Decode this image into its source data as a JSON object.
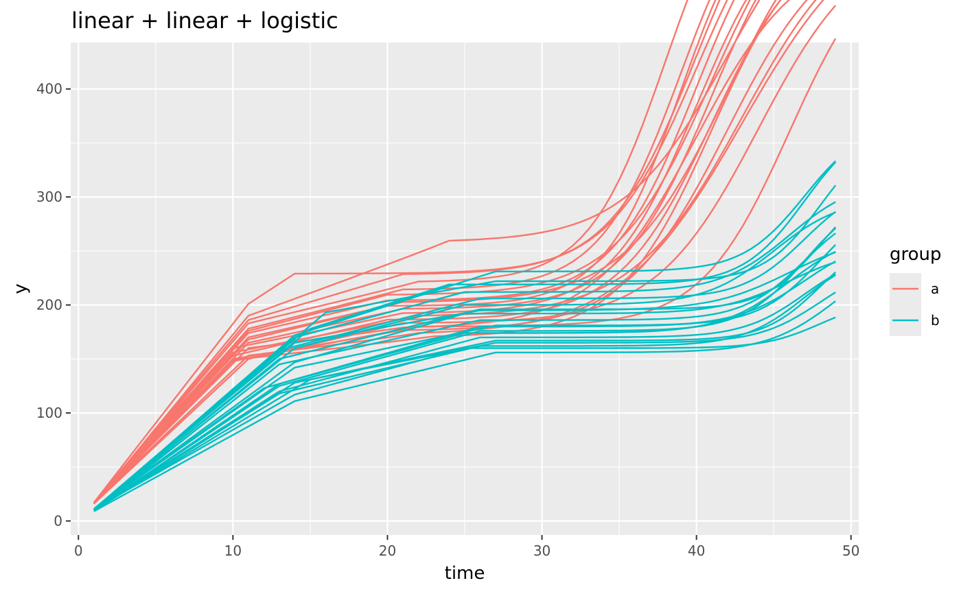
{
  "chart_data": {
    "type": "line",
    "title": "linear + linear + logistic",
    "xlabel": "time",
    "ylabel": "y",
    "xlim": [
      -0.5,
      50.5
    ],
    "ylim": [
      -13,
      443
    ],
    "x_ticks": [
      0,
      10,
      20,
      30,
      40,
      50
    ],
    "x_tick_labels": [
      "0",
      "10",
      "20",
      "30",
      "40",
      "50"
    ],
    "y_ticks": [
      0,
      100,
      200,
      300,
      400
    ],
    "y_tick_labels": [
      "0",
      "100",
      "200",
      "300",
      "400"
    ],
    "grid": true,
    "legend": {
      "title": "group",
      "position": "right",
      "entries": [
        {
          "label": "a",
          "color": "#F8766D"
        },
        {
          "label": "b",
          "color": "#00BFC4"
        }
      ]
    },
    "series_model": {
      "x_start": 1,
      "x_end": 49,
      "note_shape": "each line: linear rise from x=1 to knot1, gentle linear rise to plateau, logistic rise near the end"
    },
    "groups": [
      {
        "name": "a",
        "color": "#F8766D",
        "lines": [
          {
            "y0": 17,
            "k1": 11,
            "y1": 201,
            "k2": 14,
            "y2": 229,
            "inf": 40,
            "rate": 0.35,
            "top": 380
          },
          {
            "y0": 16,
            "k1": 11,
            "y1": 190,
            "k2": 24,
            "y2": 258,
            "inf": 42,
            "rate": 0.3,
            "top": 345
          },
          {
            "y0": 17,
            "k1": 11,
            "y1": 186,
            "k2": 21,
            "y2": 228,
            "inf": 40,
            "rate": 0.35,
            "top": 405
          },
          {
            "y0": 16,
            "k1": 11,
            "y1": 183,
            "k2": 22,
            "y2": 221,
            "inf": 38,
            "rate": 0.4,
            "top": 410
          },
          {
            "y0": 17,
            "k1": 11,
            "y1": 178,
            "k2": 21,
            "y2": 214,
            "inf": 39,
            "rate": 0.38,
            "top": 402
          },
          {
            "y0": 16,
            "k1": 11,
            "y1": 176,
            "k2": 20,
            "y2": 209,
            "inf": 41,
            "rate": 0.32,
            "top": 398
          },
          {
            "y0": 17,
            "k1": 11,
            "y1": 174,
            "k2": 20,
            "y2": 204,
            "inf": 40,
            "rate": 0.36,
            "top": 395
          },
          {
            "y0": 16,
            "k1": 11,
            "y1": 170,
            "k2": 21,
            "y2": 202,
            "inf": 42,
            "rate": 0.3,
            "top": 390
          },
          {
            "y0": 17,
            "k1": 11,
            "y1": 168,
            "k2": 20,
            "y2": 199,
            "inf": 39,
            "rate": 0.4,
            "top": 400
          },
          {
            "y0": 16,
            "k1": 11,
            "y1": 165,
            "k2": 21,
            "y2": 196,
            "inf": 41,
            "rate": 0.34,
            "top": 396
          },
          {
            "y0": 17,
            "k1": 10,
            "y1": 160,
            "k2": 21,
            "y2": 192,
            "inf": 40,
            "rate": 0.35,
            "top": 385
          },
          {
            "y0": 16,
            "k1": 10,
            "y1": 156,
            "k2": 22,
            "y2": 189,
            "inf": 43,
            "rate": 0.28,
            "top": 372
          },
          {
            "y0": 17,
            "k1": 10,
            "y1": 153,
            "k2": 20,
            "y2": 186,
            "inf": 41,
            "rate": 0.33,
            "top": 365
          },
          {
            "y0": 16,
            "k1": 11,
            "y1": 150,
            "k2": 21,
            "y2": 183,
            "inf": 44,
            "rate": 0.3,
            "top": 360
          },
          {
            "y0": 17,
            "k1": 10,
            "y1": 148,
            "k2": 22,
            "y2": 180,
            "inf": 46,
            "rate": 0.35,
            "top": 360
          },
          {
            "y0": 16,
            "k1": 10,
            "y1": 150,
            "k2": 21,
            "y2": 176,
            "inf": 42,
            "rate": 0.3,
            "top": 372
          },
          {
            "y0": 17,
            "k1": 11,
            "y1": 153,
            "k2": 22,
            "y2": 172,
            "inf": 43,
            "rate": 0.25,
            "top": 395
          },
          {
            "y0": 16,
            "k1": 10,
            "y1": 149,
            "k2": 23,
            "y2": 170,
            "inf": 41,
            "rate": 0.33,
            "top": 385
          },
          {
            "y0": 17,
            "k1": 11,
            "y1": 160,
            "k2": 21,
            "y2": 178,
            "inf": 40,
            "rate": 0.3,
            "top": 355
          }
        ]
      },
      {
        "name": "b",
        "color": "#00BFC4",
        "lines": [
          {
            "y0": 10,
            "k1": 14,
            "y1": 172,
            "k2": 27,
            "y2": 231,
            "inf": 47,
            "rate": 0.5,
            "top": 140
          },
          {
            "y0": 11,
            "k1": 15,
            "y1": 178,
            "k2": 24,
            "y2": 219,
            "inf": 47,
            "rate": 0.5,
            "top": 155
          },
          {
            "y0": 10,
            "k1": 16,
            "y1": 193,
            "k2": 27,
            "y2": 222,
            "inf": 48,
            "rate": 0.55,
            "top": 140
          },
          {
            "y0": 11,
            "k1": 14,
            "y1": 170,
            "k2": 25,
            "y2": 212,
            "inf": 46,
            "rate": 0.45,
            "top": 105
          },
          {
            "y0": 10,
            "k1": 13,
            "y1": 158,
            "k2": 26,
            "y2": 206,
            "inf": 47,
            "rate": 0.5,
            "top": 110
          },
          {
            "y0": 11,
            "k1": 14,
            "y1": 160,
            "k2": 25,
            "y2": 200,
            "inf": 45,
            "rate": 0.45,
            "top": 100
          },
          {
            "y0": 10,
            "k1": 13,
            "y1": 150,
            "k2": 26,
            "y2": 196,
            "inf": 48,
            "rate": 0.55,
            "top": 120
          },
          {
            "y0": 11,
            "k1": 14,
            "y1": 147,
            "k2": 25,
            "y2": 192,
            "inf": 46,
            "rate": 0.45,
            "top": 60
          },
          {
            "y0": 10,
            "k1": 13,
            "y1": 145,
            "k2": 26,
            "y2": 186,
            "inf": 47,
            "rate": 0.5,
            "top": 110
          },
          {
            "y0": 11,
            "k1": 14,
            "y1": 142,
            "k2": 27,
            "y2": 181,
            "inf": 48,
            "rate": 0.5,
            "top": 120
          },
          {
            "y0": 10,
            "k1": 13,
            "y1": 125,
            "k2": 26,
            "y2": 176,
            "inf": 47,
            "rate": 0.5,
            "top": 130
          },
          {
            "y0": 11,
            "k1": 12,
            "y1": 123,
            "k2": 25,
            "y2": 174,
            "inf": 46,
            "rate": 0.45,
            "top": 95
          },
          {
            "y0": 10,
            "k1": 13,
            "y1": 120,
            "k2": 26,
            "y2": 170,
            "inf": 47,
            "rate": 0.5,
            "top": 80
          },
          {
            "y0": 11,
            "k1": 14,
            "y1": 128,
            "k2": 27,
            "y2": 167,
            "inf": 48,
            "rate": 0.55,
            "top": 100
          },
          {
            "y0": 10,
            "k1": 13,
            "y1": 118,
            "k2": 26,
            "y2": 162,
            "inf": 47,
            "rate": 0.5,
            "top": 90
          },
          {
            "y0": 11,
            "k1": 14,
            "y1": 117,
            "k2": 25,
            "y2": 160,
            "inf": 48,
            "rate": 0.55,
            "top": 45
          },
          {
            "y0": 9,
            "k1": 14,
            "y1": 111,
            "k2": 27,
            "y2": 156,
            "inf": 49,
            "rate": 0.45,
            "top": 95
          },
          {
            "y0": 10,
            "k1": 13,
            "y1": 127,
            "k2": 26,
            "y2": 180,
            "inf": 47,
            "rate": 0.45,
            "top": 85
          },
          {
            "y0": 11,
            "k1": 14,
            "y1": 165,
            "k2": 26,
            "y2": 195,
            "inf": 46,
            "rate": 0.4,
            "top": 70
          },
          {
            "y0": 10,
            "k1": 15,
            "y1": 131,
            "k2": 27,
            "y2": 165,
            "inf": 48,
            "rate": 0.5,
            "top": 75
          }
        ]
      }
    ]
  }
}
